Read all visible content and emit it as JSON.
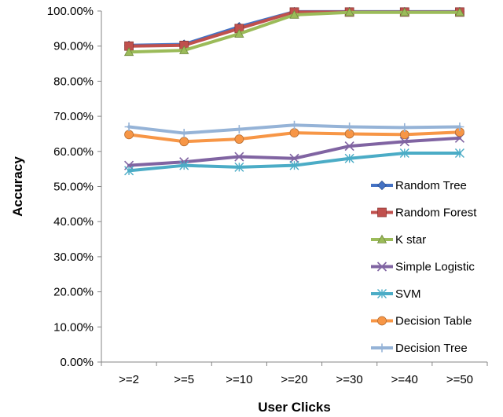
{
  "chart_data": {
    "type": "line",
    "title": "",
    "xlabel": "User Clicks",
    "ylabel": "Accuracy",
    "categories": [
      ">=2",
      ">=5",
      ">=10",
      ">=20",
      ">=30",
      ">=40",
      ">=50"
    ],
    "ylim": [
      0,
      100
    ],
    "y_ticks": [
      "0.00%",
      "10.00%",
      "20.00%",
      "30.00%",
      "40.00%",
      "50.00%",
      "60.00%",
      "70.00%",
      "80.00%",
      "90.00%",
      "100.00%"
    ],
    "grid": false,
    "legend_position": "right",
    "series": [
      {
        "name": "Random Tree",
        "color": "#4472C4",
        "marker": "diamond",
        "values": [
          90.2,
          90.5,
          95.5,
          99.8,
          99.8,
          99.8,
          99.8
        ]
      },
      {
        "name": "Random Forest",
        "color": "#C0504D",
        "marker": "square",
        "values": [
          90.0,
          90.2,
          95.0,
          99.7,
          99.7,
          99.7,
          99.7
        ]
      },
      {
        "name": "K star",
        "color": "#9BBB59",
        "marker": "triangle",
        "values": [
          88.3,
          88.8,
          93.5,
          98.9,
          99.6,
          99.6,
          99.6
        ]
      },
      {
        "name": "Simple Logistic",
        "color": "#8064A2",
        "marker": "x",
        "values": [
          56.0,
          57.0,
          58.5,
          58.0,
          61.5,
          62.8,
          63.8
        ]
      },
      {
        "name": "SVM",
        "color": "#4BACC6",
        "marker": "star",
        "values": [
          54.5,
          56.0,
          55.5,
          56.0,
          58.0,
          59.5,
          59.5
        ]
      },
      {
        "name": "Decision Table",
        "color": "#F79646",
        "marker": "circle",
        "values": [
          64.8,
          62.8,
          63.5,
          65.3,
          65.0,
          64.8,
          65.5
        ]
      },
      {
        "name": "Decision Tree",
        "color": "#95B3D7",
        "marker": "plus",
        "values": [
          67.0,
          65.2,
          66.3,
          67.5,
          67.0,
          66.8,
          67.0
        ]
      }
    ]
  }
}
